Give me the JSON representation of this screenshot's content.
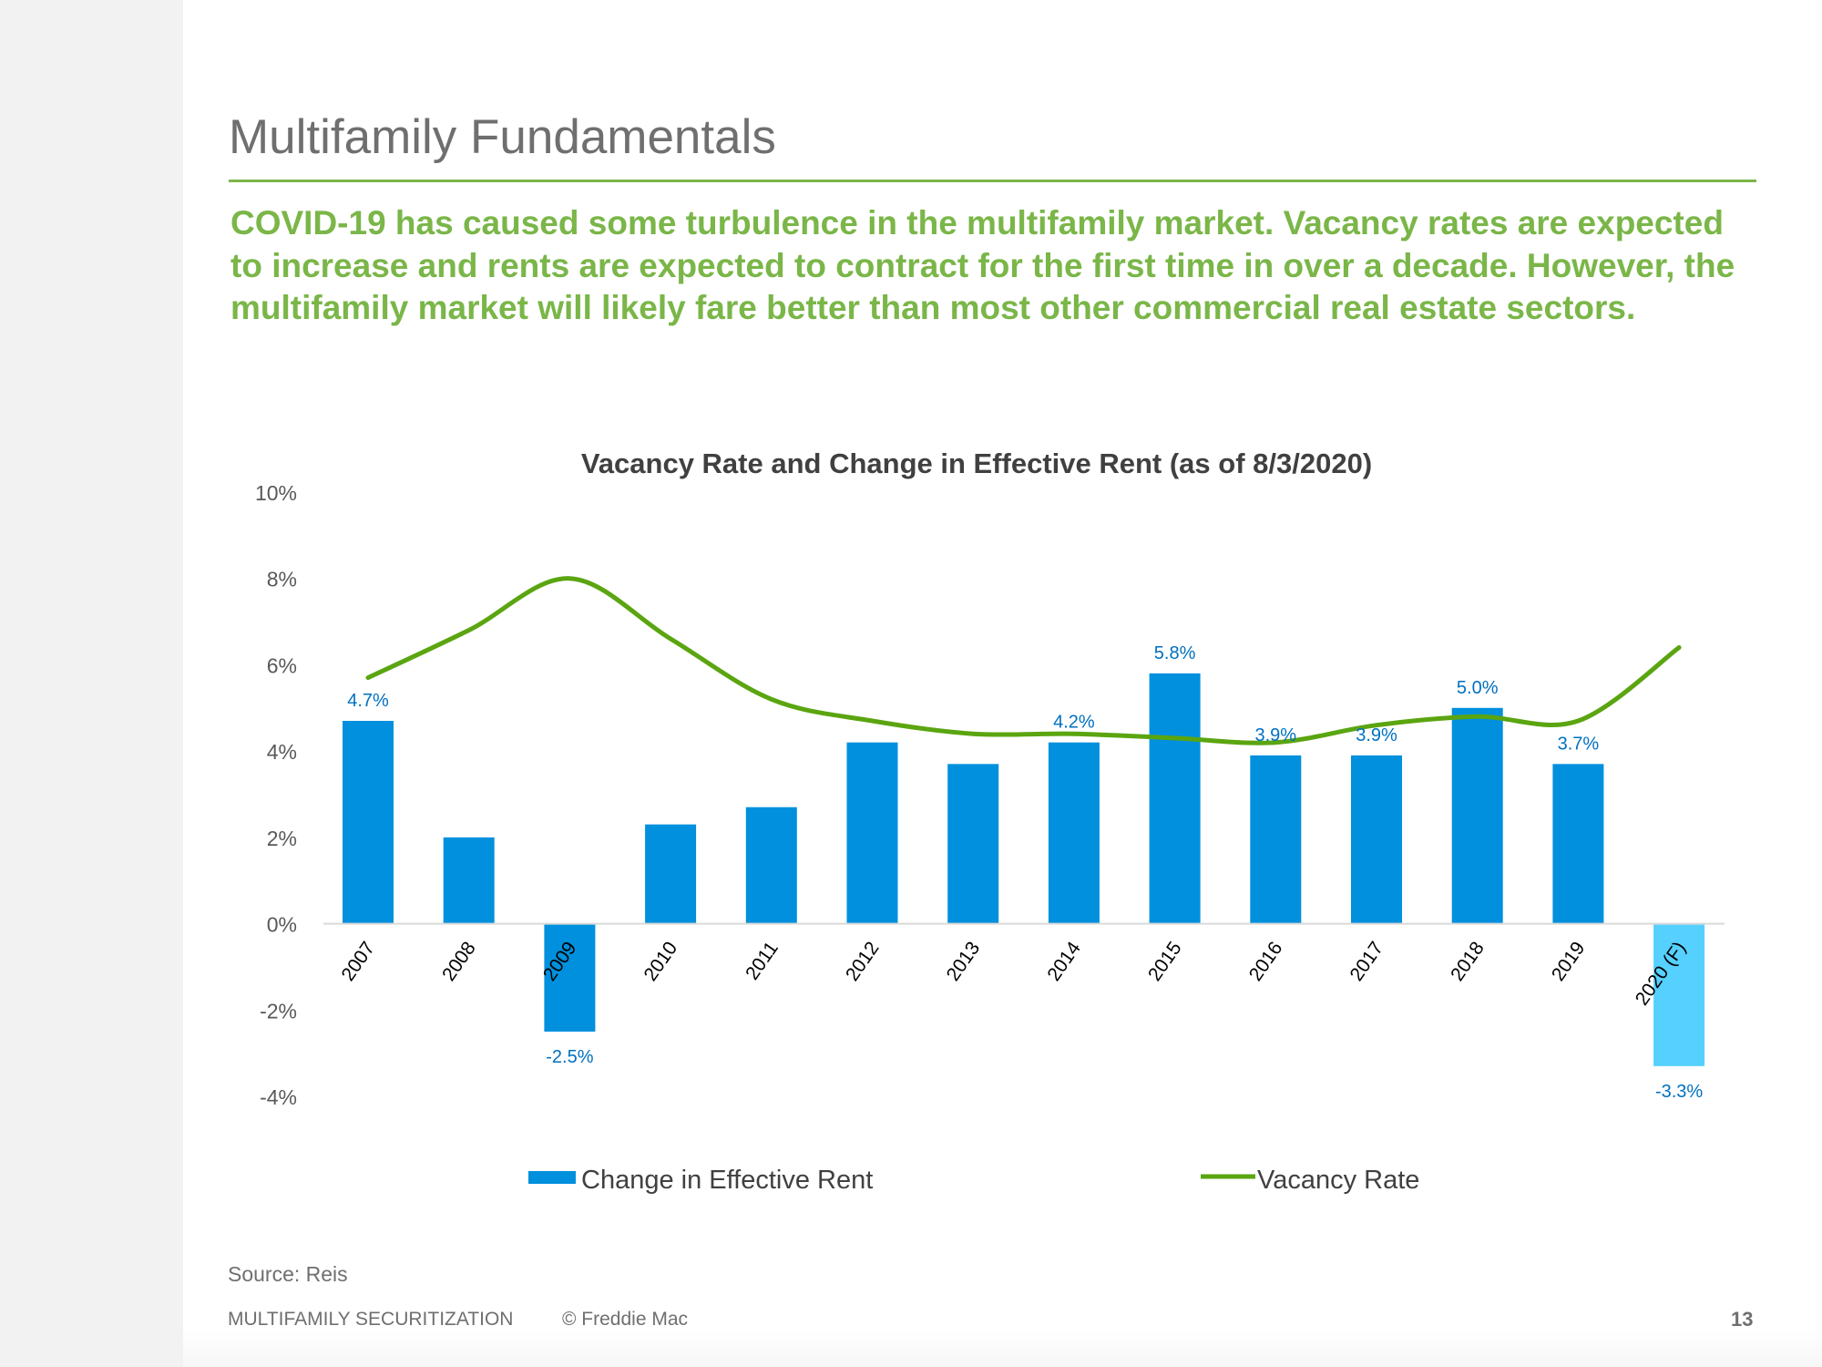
{
  "slide": {
    "title": "Multifamily Fundamentals",
    "subtitle": "COVID-19 has caused some turbulence in the multifamily market. Vacancy rates are expected to increase and rents are expected to contract for the first time in over a decade. However, the multifamily market will likely fare better than most other commercial real estate sectors.",
    "source": "Source: Reis",
    "footer_left": "MULTIFAMILY SECURITIZATION",
    "footer_copyright": "© Freddie Mac",
    "page_number": "13"
  },
  "colors": {
    "accent_green": "#7ab648",
    "bar_blue": "#0090dd",
    "bar_forecast": "#55d0ff",
    "line_green": "#5aa510",
    "label_blue": "#0070c0",
    "text_gray": "#6f6f6f"
  },
  "chart_data": {
    "type": "bar",
    "title": "Vacancy Rate and Change in Effective Rent (as of 8/3/2020)",
    "categories": [
      "2007",
      "2008",
      "2009",
      "2010",
      "2011",
      "2012",
      "2013",
      "2014",
      "2015",
      "2016",
      "2017",
      "2018",
      "2019",
      "2020 (F)"
    ],
    "series": [
      {
        "name": "Change in Effective Rent",
        "type": "bar",
        "values": [
          4.7,
          2.0,
          -2.5,
          2.3,
          2.7,
          4.2,
          3.7,
          4.2,
          5.8,
          3.9,
          3.9,
          5.0,
          3.7,
          -3.3
        ],
        "data_labels": [
          "4.7%",
          "",
          "-2.5%",
          "",
          "",
          "",
          "",
          "4.2%",
          "5.8%",
          "3.9%",
          "3.9%",
          "5.0%",
          "3.7%",
          "-3.3%"
        ]
      },
      {
        "name": "Vacancy Rate",
        "type": "line",
        "smooth": true,
        "values": [
          5.7,
          6.8,
          8.0,
          6.6,
          5.2,
          4.7,
          4.4,
          4.4,
          4.3,
          4.2,
          4.6,
          4.8,
          4.7,
          6.4
        ]
      }
    ],
    "y_ticks": [
      "10%",
      "8%",
      "6%",
      "4%",
      "2%",
      "0%",
      "-2%",
      "-4%"
    ],
    "ylim": [
      -4,
      10
    ],
    "xlabel": "",
    "ylabel": "",
    "grid": false,
    "legend_position": "bottom",
    "forecast_category": "2020 (F)"
  }
}
